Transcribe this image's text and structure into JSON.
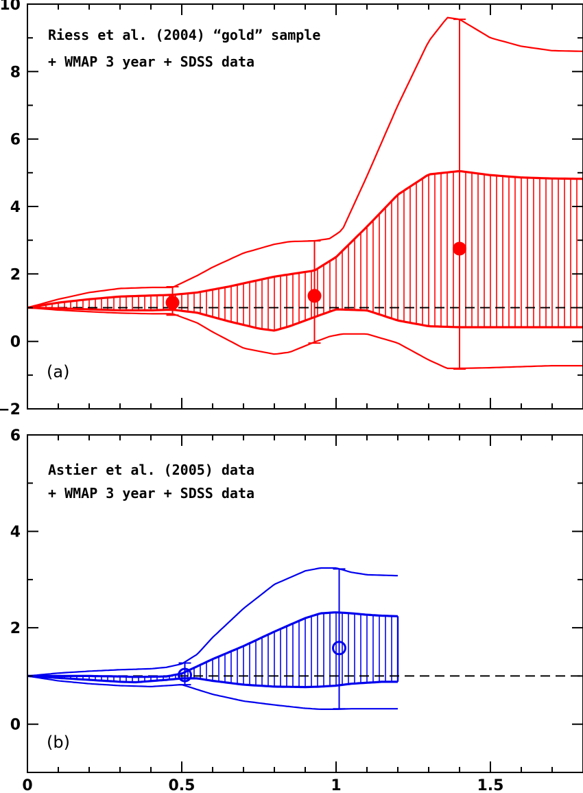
{
  "chart_data": [
    {
      "type": "line",
      "panel_label": "(a)",
      "annotation": [
        "Riess et al. (2004) “gold” sample",
        "+ WMAP 3 year + SDSS data"
      ],
      "xlim": [
        0,
        1.8
      ],
      "ylim": [
        -2,
        10
      ],
      "xticks": [
        0,
        0.5,
        1,
        1.5
      ],
      "yticks": [
        -2,
        0,
        2,
        4,
        6,
        8,
        10
      ],
      "ytick_labels": [
        "−2",
        "0",
        "2",
        "4",
        "6",
        "8",
        "10"
      ],
      "color": "#ff0000",
      "reference_line_y": 1,
      "band_68": {
        "x": [
          0,
          0.1,
          0.2,
          0.3,
          0.4,
          0.47,
          0.55,
          0.65,
          0.75,
          0.8,
          0.85,
          0.93,
          1.0,
          1.1,
          1.2,
          1.3,
          1.4,
          1.5,
          1.6,
          1.7,
          1.8
        ],
        "upper": [
          1.0,
          1.15,
          1.25,
          1.33,
          1.36,
          1.38,
          1.45,
          1.62,
          1.82,
          1.92,
          1.99,
          2.1,
          2.5,
          3.4,
          4.35,
          4.95,
          5.05,
          4.93,
          4.86,
          4.83,
          4.82
        ],
        "lower": [
          1.0,
          0.98,
          0.95,
          0.92,
          0.92,
          0.94,
          0.85,
          0.6,
          0.38,
          0.32,
          0.45,
          0.72,
          0.95,
          0.92,
          0.62,
          0.45,
          0.42,
          0.42,
          0.42,
          0.42,
          0.42
        ]
      },
      "band_95": {
        "x": [
          0,
          0.1,
          0.2,
          0.3,
          0.4,
          0.47,
          0.55,
          0.6,
          0.7,
          0.8,
          0.85,
          0.93,
          0.98,
          1.02,
          1.1,
          1.2,
          1.3,
          1.36,
          1.4,
          1.5,
          1.6,
          1.7,
          1.8
        ],
        "upper": [
          1.0,
          1.25,
          1.45,
          1.57,
          1.6,
          1.6,
          1.95,
          2.2,
          2.62,
          2.88,
          2.96,
          2.98,
          3.05,
          3.3,
          4.9,
          7.0,
          8.9,
          9.6,
          9.55,
          9.0,
          8.75,
          8.62,
          8.6
        ],
        "lower": [
          1.0,
          0.93,
          0.88,
          0.84,
          0.82,
          0.82,
          0.55,
          0.28,
          -0.2,
          -0.38,
          -0.32,
          -0.02,
          0.15,
          0.22,
          0.22,
          -0.05,
          -0.55,
          -0.8,
          -0.8,
          -0.78,
          -0.75,
          -0.72,
          -0.72
        ]
      },
      "points": [
        {
          "x": 0.47,
          "y": 1.15,
          "err_lo": 0.78,
          "err_hi": 1.62
        },
        {
          "x": 0.93,
          "y": 1.35,
          "err_lo": -0.05,
          "err_hi": 2.98
        },
        {
          "x": 1.4,
          "y": 2.75,
          "err_lo": -0.82,
          "err_hi": 9.55
        }
      ],
      "marker": "filled"
    },
    {
      "type": "line",
      "panel_label": "(b)",
      "annotation": [
        "Astier et al. (2005) data",
        "+ WMAP 3 year + SDSS data"
      ],
      "xlim": [
        0,
        1.8
      ],
      "ylim": [
        -1,
        6
      ],
      "xticks": [
        0,
        0.5,
        1,
        1.5
      ],
      "xtick_labels": [
        "0",
        "0.5",
        "1",
        "1.5"
      ],
      "yticks": [
        0,
        2,
        4,
        6
      ],
      "ytick_labels": [
        "0",
        "2",
        "4",
        "6"
      ],
      "color": "#0000ee",
      "reference_line_y": 1,
      "band_68": {
        "x": [
          0,
          0.1,
          0.2,
          0.3,
          0.35,
          0.45,
          0.5,
          0.55,
          0.6,
          0.7,
          0.8,
          0.9,
          0.95,
          1.0,
          1.05,
          1.1,
          1.15,
          1.2
        ],
        "upper": [
          1.0,
          1.0,
          1.0,
          0.99,
          0.98,
          0.99,
          1.05,
          1.2,
          1.35,
          1.62,
          1.92,
          2.2,
          2.3,
          2.32,
          2.3,
          2.27,
          2.25,
          2.24
        ],
        "lower": [
          1.0,
          0.96,
          0.92,
          0.88,
          0.87,
          0.92,
          0.95,
          0.95,
          0.9,
          0.82,
          0.78,
          0.77,
          0.78,
          0.8,
          0.84,
          0.86,
          0.88,
          0.88
        ]
      },
      "band_95": {
        "x": [
          0,
          0.1,
          0.2,
          0.3,
          0.4,
          0.45,
          0.5,
          0.55,
          0.6,
          0.7,
          0.8,
          0.9,
          0.95,
          1.0,
          1.05,
          1.1,
          1.2
        ],
        "upper": [
          1.0,
          1.06,
          1.1,
          1.13,
          1.15,
          1.18,
          1.25,
          1.45,
          1.8,
          2.4,
          2.9,
          3.18,
          3.24,
          3.24,
          3.15,
          3.1,
          3.08
        ],
        "lower": [
          1.0,
          0.9,
          0.84,
          0.8,
          0.78,
          0.8,
          0.82,
          0.72,
          0.62,
          0.48,
          0.4,
          0.33,
          0.31,
          0.31,
          0.32,
          0.32,
          0.32
        ]
      },
      "points": [
        {
          "x": 0.51,
          "y": 1.02,
          "err_lo": 0.82,
          "err_hi": 1.27
        },
        {
          "x": 1.01,
          "y": 1.58,
          "err_lo": 0.32,
          "err_hi": 3.22
        }
      ],
      "marker": "open"
    }
  ]
}
